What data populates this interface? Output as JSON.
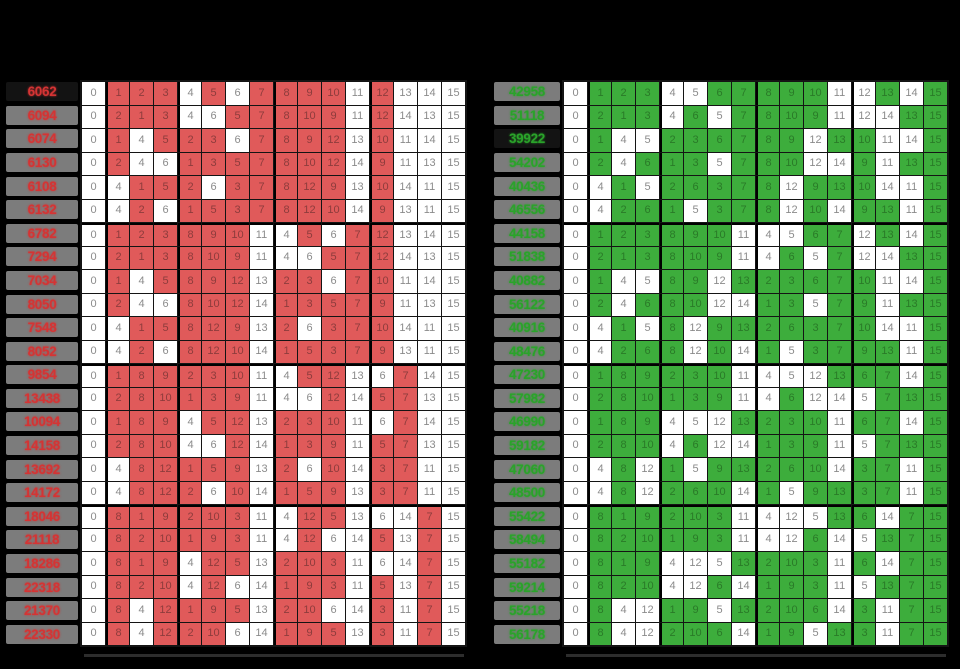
{
  "page": {
    "background": "#000000"
  },
  "chart_data": {
    "type": "table",
    "description": "Two side-by-side 24-row tables of the 24 bit-permutations of indices 0-15; cells whose value belongs to the table's highlight set are filled (red on left, green on right); each row's label is the resulting permuted bitmask score; the minimum score row label is shown on a black chip.",
    "columns": [
      0,
      1,
      2,
      3,
      4,
      5,
      6,
      7,
      8,
      9,
      10,
      11,
      12,
      13,
      14,
      15
    ],
    "permutations": [
      [
        0,
        1,
        2,
        3,
        4,
        5,
        6,
        7,
        8,
        9,
        10,
        11,
        12,
        13,
        14,
        15
      ],
      [
        0,
        2,
        1,
        3,
        4,
        6,
        5,
        7,
        8,
        10,
        9,
        11,
        12,
        14,
        13,
        15
      ],
      [
        0,
        1,
        4,
        5,
        2,
        3,
        6,
        7,
        8,
        9,
        12,
        13,
        10,
        11,
        14,
        15
      ],
      [
        0,
        2,
        4,
        6,
        1,
        3,
        5,
        7,
        8,
        10,
        12,
        14,
        9,
        11,
        13,
        15
      ],
      [
        0,
        4,
        1,
        5,
        2,
        6,
        3,
        7,
        8,
        12,
        9,
        13,
        10,
        14,
        11,
        15
      ],
      [
        0,
        4,
        2,
        6,
        1,
        5,
        3,
        7,
        8,
        12,
        10,
        14,
        9,
        13,
        11,
        15
      ],
      [
        0,
        1,
        2,
        3,
        8,
        9,
        10,
        11,
        4,
        5,
        6,
        7,
        12,
        13,
        14,
        15
      ],
      [
        0,
        2,
        1,
        3,
        8,
        10,
        9,
        11,
        4,
        6,
        5,
        7,
        12,
        14,
        13,
        15
      ],
      [
        0,
        1,
        4,
        5,
        8,
        9,
        12,
        13,
        2,
        3,
        6,
        7,
        10,
        11,
        14,
        15
      ],
      [
        0,
        2,
        4,
        6,
        8,
        10,
        12,
        14,
        1,
        3,
        5,
        7,
        9,
        11,
        13,
        15
      ],
      [
        0,
        4,
        1,
        5,
        8,
        12,
        9,
        13,
        2,
        6,
        3,
        7,
        10,
        14,
        11,
        15
      ],
      [
        0,
        4,
        2,
        6,
        8,
        12,
        10,
        14,
        1,
        5,
        3,
        7,
        9,
        13,
        11,
        15
      ],
      [
        0,
        1,
        8,
        9,
        2,
        3,
        10,
        11,
        4,
        5,
        12,
        13,
        6,
        7,
        14,
        15
      ],
      [
        0,
        2,
        8,
        10,
        1,
        3,
        9,
        11,
        4,
        6,
        12,
        14,
        5,
        7,
        13,
        15
      ],
      [
        0,
        1,
        8,
        9,
        4,
        5,
        12,
        13,
        2,
        3,
        10,
        11,
        6,
        7,
        14,
        15
      ],
      [
        0,
        2,
        8,
        10,
        4,
        6,
        12,
        14,
        1,
        3,
        9,
        11,
        5,
        7,
        13,
        15
      ],
      [
        0,
        4,
        8,
        12,
        1,
        5,
        9,
        13,
        2,
        6,
        10,
        14,
        3,
        7,
        11,
        15
      ],
      [
        0,
        4,
        8,
        12,
        2,
        6,
        10,
        14,
        1,
        5,
        9,
        13,
        3,
        7,
        11,
        15
      ],
      [
        0,
        8,
        1,
        9,
        2,
        10,
        3,
        11,
        4,
        12,
        5,
        13,
        6,
        14,
        7,
        15
      ],
      [
        0,
        8,
        2,
        10,
        1,
        9,
        3,
        11,
        4,
        12,
        6,
        14,
        5,
        13,
        7,
        15
      ],
      [
        0,
        8,
        1,
        9,
        4,
        12,
        5,
        13,
        2,
        10,
        3,
        11,
        6,
        14,
        7,
        15
      ],
      [
        0,
        8,
        2,
        10,
        4,
        12,
        6,
        14,
        1,
        9,
        3,
        11,
        5,
        13,
        7,
        15
      ],
      [
        0,
        8,
        4,
        12,
        1,
        9,
        5,
        13,
        2,
        10,
        6,
        14,
        3,
        11,
        7,
        15
      ],
      [
        0,
        8,
        4,
        12,
        2,
        10,
        6,
        14,
        1,
        9,
        5,
        13,
        3,
        11,
        7,
        15
      ]
    ],
    "layout": {
      "column_group_starts": [
        1,
        4,
        8,
        12
      ],
      "row_group_starts": [
        6,
        12,
        18
      ],
      "grid": "on",
      "background": "black"
    },
    "tables": [
      {
        "name": "red",
        "side": "left",
        "fill_color": "#e05a5a",
        "label_color": "#d43434",
        "highlight_values": [
          1,
          2,
          3,
          5,
          7,
          8,
          9,
          10,
          12
        ],
        "base_mask": 6062,
        "selected_row": 0,
        "row_labels": [
          6062,
          6094,
          6074,
          6130,
          6108,
          6132,
          6782,
          7294,
          7034,
          8050,
          7548,
          8052,
          9854,
          13438,
          10094,
          14158,
          13692,
          14172,
          18046,
          21118,
          18286,
          22318,
          21370,
          22330
        ]
      },
      {
        "name": "green",
        "side": "right",
        "fill_color": "#3dad3c",
        "label_color": "#2aa32a",
        "highlight_values": [
          1,
          2,
          3,
          6,
          7,
          8,
          9,
          10,
          13,
          15
        ],
        "base_mask": 42958,
        "selected_row": 2,
        "row_labels": [
          42958,
          51118,
          39922,
          54202,
          40436,
          46556,
          44158,
          51838,
          40882,
          56122,
          40916,
          48476,
          47230,
          57982,
          46990,
          59182,
          47060,
          48500,
          55422,
          58494,
          55182,
          59214,
          55218,
          56178
        ]
      }
    ]
  }
}
